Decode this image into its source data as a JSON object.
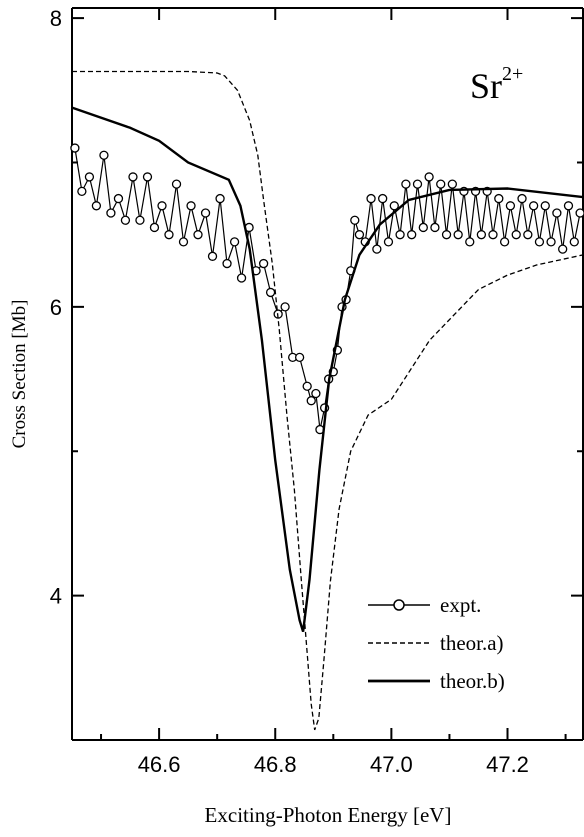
{
  "chart_data": {
    "type": "line",
    "annotation": {
      "text": "Sr",
      "sup": "2+"
    },
    "xlabel": "Exciting-Photon Energy [eV]",
    "ylabel": "Cross Section [Mb]",
    "xlim": [
      46.45,
      47.33
    ],
    "ylim": [
      3.0,
      8.07
    ],
    "xticks": [
      46.6,
      46.8,
      {
        "value": 47,
        "label": "47.0"
      },
      47.2
    ],
    "xminor": [
      46.5,
      46.7,
      46.9,
      47.1,
      47.3
    ],
    "yticks": [
      4,
      6,
      8
    ],
    "yminor": [
      5,
      7
    ],
    "legend": "lower right",
    "series": [
      {
        "name": "expt.",
        "color": "#000000",
        "marker": "circle",
        "dash": "solid",
        "x": [
          46.455,
          46.467,
          46.48,
          46.492,
          46.505,
          46.517,
          46.53,
          46.542,
          46.555,
          46.567,
          46.58,
          46.592,
          46.605,
          46.617,
          46.63,
          46.642,
          46.655,
          46.667,
          46.68,
          46.692,
          46.705,
          46.717,
          46.73,
          46.742,
          46.755,
          46.767,
          46.78,
          46.792,
          46.805,
          46.817,
          46.83,
          46.842,
          46.855,
          46.862,
          46.87,
          46.877,
          46.885,
          46.892,
          46.9,
          46.907,
          46.915,
          46.922,
          46.93,
          46.937,
          46.945,
          46.955,
          46.965,
          46.975,
          46.985,
          46.995,
          47.005,
          47.015,
          47.025,
          47.035,
          47.045,
          47.055,
          47.065,
          47.075,
          47.085,
          47.095,
          47.105,
          47.115,
          47.125,
          47.135,
          47.145,
          47.155,
          47.165,
          47.175,
          47.185,
          47.195,
          47.205,
          47.215,
          47.225,
          47.235,
          47.245,
          47.255,
          47.265,
          47.275,
          47.285,
          47.295,
          47.305,
          47.315,
          47.325
        ],
        "values": [
          7.1,
          6.8,
          6.9,
          6.7,
          7.05,
          6.65,
          6.75,
          6.6,
          6.9,
          6.6,
          6.9,
          6.55,
          6.7,
          6.5,
          6.85,
          6.45,
          6.7,
          6.5,
          6.65,
          6.35,
          6.75,
          6.3,
          6.45,
          6.2,
          6.55,
          6.25,
          6.3,
          6.1,
          5.95,
          6.0,
          5.65,
          5.65,
          5.45,
          5.35,
          5.4,
          5.15,
          5.3,
          5.5,
          5.55,
          5.7,
          6.0,
          6.05,
          6.25,
          6.6,
          6.5,
          6.45,
          6.75,
          6.4,
          6.75,
          6.45,
          6.7,
          6.5,
          6.85,
          6.5,
          6.85,
          6.55,
          6.9,
          6.55,
          6.85,
          6.5,
          6.85,
          6.5,
          6.8,
          6.45,
          6.8,
          6.5,
          6.8,
          6.5,
          6.75,
          6.45,
          6.7,
          6.5,
          6.75,
          6.5,
          6.7,
          6.45,
          6.7,
          6.45,
          6.65,
          6.4,
          6.7,
          6.45,
          6.65
        ]
      },
      {
        "name": "theor.a)",
        "color": "#000000",
        "marker": "none",
        "dash": "dashed",
        "x": [
          46.45,
          46.55,
          46.65,
          46.7,
          46.713,
          46.735,
          46.756,
          46.77,
          46.78,
          46.795,
          46.807,
          46.82,
          46.833,
          46.845,
          46.855,
          46.862,
          46.868,
          46.875,
          46.884,
          46.895,
          46.91,
          46.93,
          46.96,
          47.0,
          47.066,
          47.15,
          47.2,
          47.25,
          47.33
        ],
        "values": [
          7.63,
          7.63,
          7.63,
          7.62,
          7.6,
          7.5,
          7.29,
          7.05,
          6.74,
          6.3,
          5.84,
          5.25,
          4.73,
          4.1,
          3.6,
          3.25,
          3.07,
          3.15,
          3.56,
          4.1,
          4.6,
          5.0,
          5.25,
          5.36,
          5.77,
          6.12,
          6.22,
          6.29,
          6.36
        ]
      },
      {
        "name": "theor.b)",
        "color": "#000000",
        "marker": "none",
        "dash": "solid",
        "x": [
          46.45,
          46.55,
          46.6,
          46.65,
          46.72,
          46.74,
          46.756,
          46.777,
          46.8,
          46.825,
          46.842,
          46.848,
          46.859,
          46.876,
          46.893,
          46.92,
          46.945,
          46.98,
          47.03,
          47.1,
          47.2,
          47.33
        ],
        "values": [
          7.38,
          7.24,
          7.15,
          7.0,
          6.88,
          6.7,
          6.4,
          5.77,
          4.94,
          4.18,
          3.83,
          3.75,
          4.11,
          4.87,
          5.5,
          6.05,
          6.36,
          6.57,
          6.74,
          6.81,
          6.82,
          6.76
        ]
      }
    ]
  }
}
